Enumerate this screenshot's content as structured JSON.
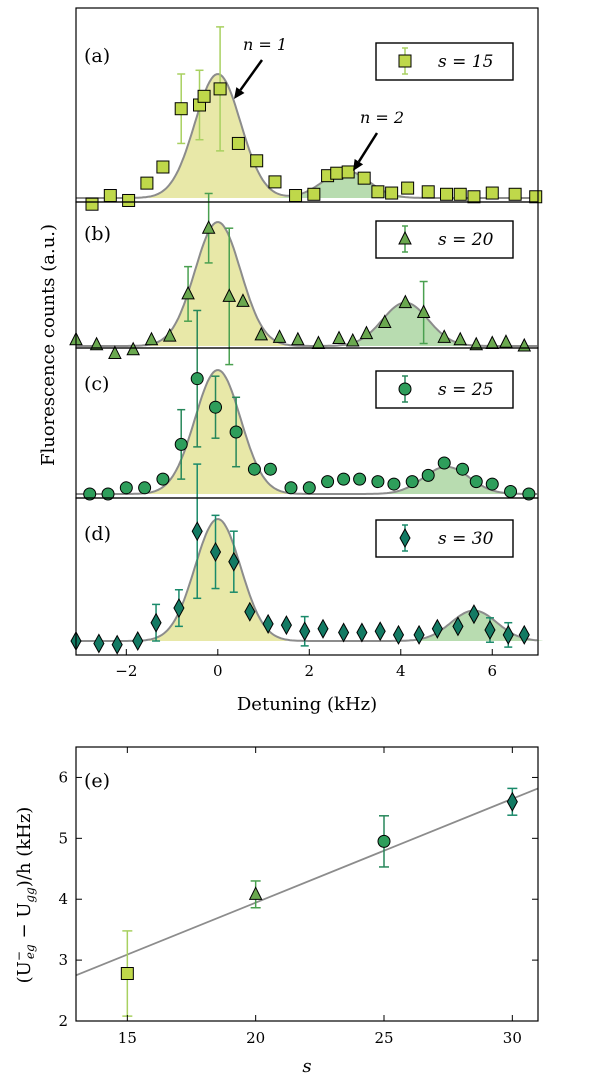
{
  "figure": {
    "top_xlabel": "Detuning (kHz)",
    "top_ylabel": "Fluorescence counts (a.u.)",
    "bottom_xlabel": "s",
    "bottom_ylabel": "(U⁻ₑᵧ − Uᵧᵧ)/h (kHz)",
    "bottom_ylabel_parts": {
      "lead": "(U",
      "sup": "−",
      "sub1": "eg",
      "mid": " − U",
      "sub2": "gg",
      "tail": ")/h (kHz)"
    }
  },
  "colors": {
    "light_green": "#bfd84a",
    "light_green_err": "#a8d060",
    "mid_green": "#6aa84f",
    "mid_green_err": "#4aa050",
    "circle_green": "#2e9e5b",
    "circle_err": "#27875a",
    "dark_teal": "#137a63",
    "dark_teal_err": "#1a8a6a",
    "fit_line": "#8c8c8c",
    "fill_n1": "#e8e8a8",
    "fill_n2": "#b8dcb0"
  },
  "chart_data": [
    {
      "type": "scatter",
      "panel": "(a)",
      "legend": "s = 15",
      "marker": "square",
      "annotations": [
        "n = 1",
        "n = 2"
      ],
      "xlim": [
        -3.1,
        7.0
      ],
      "peaks": {
        "n1_center": 0.0,
        "n1_amp": 1.0,
        "n1_sigma": 0.5,
        "n2_center": 2.8,
        "n2_amp": 0.22,
        "n2_sigma": 0.5
      },
      "x": [
        -2.75,
        -2.35,
        -1.95,
        -1.55,
        -1.2,
        -0.8,
        -0.4,
        -0.3,
        0.05,
        0.45,
        0.85,
        1.25,
        1.7,
        2.1,
        2.4,
        2.6,
        2.85,
        3.2,
        3.5,
        3.8,
        4.15,
        4.6,
        5.0,
        5.3,
        5.6,
        6.0,
        6.5,
        6.95
      ],
      "y": [
        -0.05,
        0.02,
        -0.02,
        0.12,
        0.25,
        0.72,
        0.75,
        0.82,
        0.88,
        0.44,
        0.3,
        0.13,
        0.02,
        0.03,
        0.18,
        0.2,
        0.21,
        0.16,
        0.05,
        0.04,
        0.08,
        0.05,
        0.03,
        0.03,
        0.01,
        0.04,
        0.03,
        0.01
      ],
      "err": [
        0,
        0,
        0,
        0,
        0,
        0.28,
        0.28,
        0,
        0.5,
        0,
        0,
        0,
        0,
        0,
        0,
        0,
        0,
        0,
        0,
        0,
        0,
        0,
        0,
        0,
        0,
        0,
        0,
        0
      ]
    },
    {
      "type": "scatter",
      "panel": "(b)",
      "legend": "s = 20",
      "marker": "triangle",
      "xlim": [
        -3.1,
        7.0
      ],
      "peaks": {
        "n1_center": 0.0,
        "n1_amp": 1.0,
        "n1_sigma": 0.5,
        "n2_center": 4.1,
        "n2_amp": 0.35,
        "n2_sigma": 0.5
      },
      "x": [
        -3.1,
        -2.65,
        -2.25,
        -1.85,
        -1.45,
        -1.05,
        -0.65,
        -0.2,
        0.25,
        0.55,
        0.95,
        1.35,
        1.75,
        2.2,
        2.65,
        2.95,
        3.25,
        3.65,
        4.1,
        4.5,
        4.95,
        5.3,
        5.65,
        6.0,
        6.3,
        6.7
      ],
      "y": [
        0.05,
        0.01,
        -0.06,
        -0.03,
        0.05,
        0.08,
        0.42,
        0.95,
        0.4,
        0.36,
        0.09,
        0.07,
        0.05,
        0.02,
        0.06,
        0.04,
        0.1,
        0.19,
        0.35,
        0.27,
        0.07,
        0.05,
        0.01,
        0.02,
        0.03,
        0.0
      ],
      "err": [
        0,
        0,
        0,
        0,
        0,
        0,
        0.22,
        0.28,
        0.55,
        0,
        0,
        0,
        0,
        0,
        0,
        0,
        0,
        0,
        0,
        0.25,
        0,
        0,
        0,
        0,
        0,
        0
      ]
    },
    {
      "type": "scatter",
      "panel": "(c)",
      "legend": "s = 25",
      "marker": "circle",
      "xlim": [
        -3.1,
        7.0
      ],
      "peaks": {
        "n1_center": 0.0,
        "n1_amp": 1.0,
        "n1_sigma": 0.5,
        "n2_center": 5.0,
        "n2_amp": 0.22,
        "n2_sigma": 0.5
      },
      "x": [
        -2.8,
        -2.4,
        -2.0,
        -1.6,
        -1.2,
        -0.8,
        -0.45,
        -0.05,
        0.4,
        0.8,
        1.15,
        1.6,
        2.0,
        2.4,
        2.75,
        3.1,
        3.5,
        3.85,
        4.25,
        4.6,
        4.95,
        5.35,
        5.65,
        6.0,
        6.4,
        6.8
      ],
      "y": [
        0.0,
        0.0,
        0.05,
        0.05,
        0.12,
        0.4,
        0.93,
        0.7,
        0.5,
        0.2,
        0.2,
        0.05,
        0.05,
        0.1,
        0.12,
        0.12,
        0.1,
        0.08,
        0.1,
        0.15,
        0.25,
        0.2,
        0.1,
        0.08,
        0.02,
        0.0
      ],
      "err": [
        0,
        0,
        0,
        0,
        0,
        0.28,
        0.55,
        0.25,
        0.28,
        0,
        0,
        0,
        0,
        0,
        0,
        0,
        0,
        0,
        0,
        0,
        0,
        0,
        0,
        0,
        0,
        0
      ]
    },
    {
      "type": "scatter",
      "panel": "(d)",
      "legend": "s = 30",
      "marker": "diamond",
      "xlim": [
        -3.1,
        7.0
      ],
      "peaks": {
        "n1_center": 0.0,
        "n1_amp": 1.0,
        "n1_sigma": 0.5,
        "n2_center": 5.6,
        "n2_amp": 0.25,
        "n2_sigma": 0.5
      },
      "x": [
        -3.1,
        -2.6,
        -2.2,
        -1.75,
        -1.35,
        -0.85,
        -0.45,
        -0.05,
        0.35,
        0.7,
        1.1,
        1.5,
        1.9,
        2.3,
        2.75,
        3.15,
        3.55,
        3.95,
        4.4,
        4.8,
        5.25,
        5.6,
        5.95,
        6.35,
        6.7
      ],
      "y": [
        0.0,
        -0.02,
        -0.03,
        0.0,
        0.15,
        0.27,
        0.9,
        0.73,
        0.65,
        0.24,
        0.14,
        0.13,
        0.08,
        0.1,
        0.07,
        0.07,
        0.08,
        0.05,
        0.05,
        0.1,
        0.12,
        0.22,
        0.09,
        0.05,
        0.05
      ],
      "err": [
        0,
        0,
        0,
        0,
        0.15,
        0.15,
        0.55,
        0.3,
        0.25,
        0,
        0,
        0,
        0.12,
        0,
        0,
        0,
        0,
        0,
        0,
        0,
        0,
        0,
        0.1,
        0.1,
        0
      ]
    },
    {
      "type": "scatter",
      "panel": "(e)",
      "x": [
        15,
        20,
        25,
        30
      ],
      "y": [
        2.78,
        4.08,
        4.95,
        5.6
      ],
      "err": [
        0.7,
        0.22,
        0.42,
        0.22
      ],
      "markers": [
        "square",
        "triangle",
        "circle",
        "diamond"
      ],
      "fit": {
        "x": [
          13,
          31
        ],
        "y": [
          2.75,
          5.82
        ]
      },
      "xlim": [
        13,
        31
      ],
      "ylim": [
        2,
        6.5
      ],
      "xticks": [
        15,
        20,
        25,
        30
      ],
      "yticks": [
        2,
        3,
        4,
        5,
        6
      ]
    }
  ],
  "top_xticks": [
    -2,
    0,
    2,
    4,
    6
  ]
}
